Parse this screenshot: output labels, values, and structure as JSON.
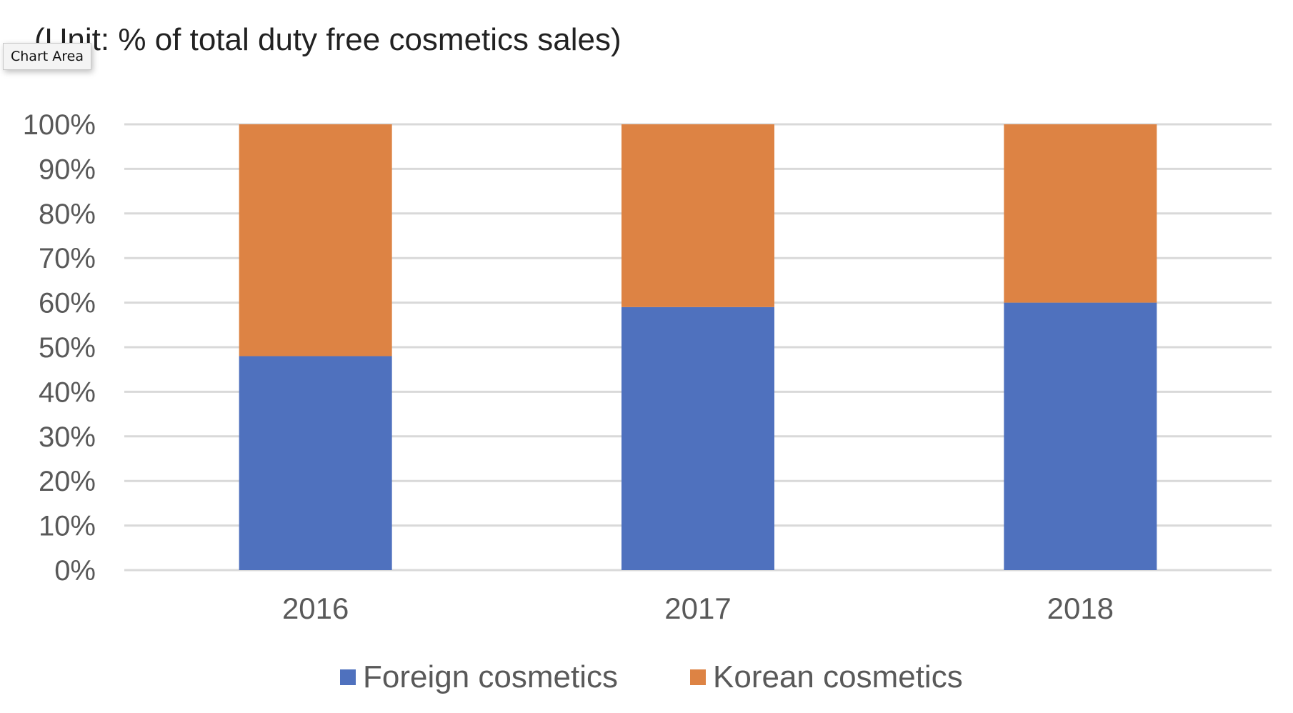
{
  "chart_data": {
    "type": "bar",
    "stacked": true,
    "title": "",
    "subtitle": "(Unit: % of total duty free cosmetics sales)",
    "xlabel": "",
    "ylabel": "",
    "categories": [
      "2016",
      "2017",
      "2018"
    ],
    "series": [
      {
        "name": "Foreign cosmetics",
        "values": [
          48,
          59,
          60
        ],
        "color": "#4f71be"
      },
      {
        "name": "Korean cosmetics",
        "values": [
          52,
          41,
          40
        ],
        "color": "#dd8344"
      }
    ],
    "ylim": [
      0,
      100
    ],
    "yticks": [
      "0%",
      "10%",
      "20%",
      "30%",
      "40%",
      "50%",
      "60%",
      "70%",
      "80%",
      "90%",
      "100%"
    ],
    "grid": true,
    "legend": "bottom"
  },
  "tooltip": {
    "label": "Chart Area"
  }
}
